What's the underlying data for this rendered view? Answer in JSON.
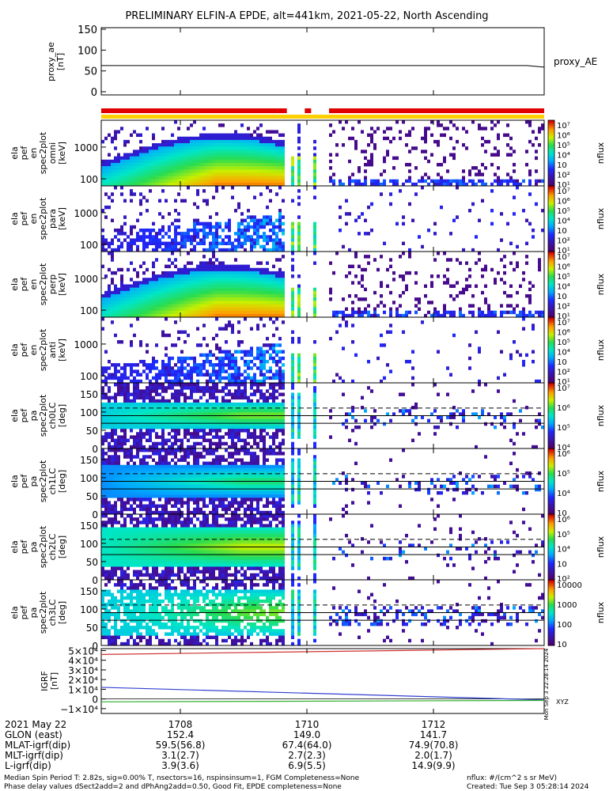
{
  "title": "PRELIMINARY ELFIN-A EPDE, alt=441km, 2021-05-22, North Ascending",
  "chart_data": {
    "type": "heatmap",
    "title": "PRELIMINARY ELFIN-A EPDE, alt=441km, 2021-05-22, North Ascending",
    "time_ticks": [
      "1708",
      "1710",
      "1712"
    ],
    "time_range": [
      "17:06:45",
      "17:13:45"
    ],
    "proxy_ae": {
      "ylabel": [
        "proxy_ae",
        "[nT]"
      ],
      "yticks": [
        "150",
        "100",
        "50",
        "0"
      ],
      "ylim": [
        0,
        150
      ],
      "value": 63,
      "legend": "proxy_AE"
    },
    "status_bars": {
      "red_segments": [
        [
          "17:06:45",
          "17:09:41"
        ],
        [
          "17:09:58",
          "17:10:04"
        ],
        [
          "17:10:21",
          "17:13:45"
        ]
      ],
      "yellow_segment": [
        "17:06:45",
        "17:13:45"
      ]
    },
    "panels": [
      {
        "ylabel": [
          "ela",
          "pef",
          "en",
          "spec2plot",
          "omni",
          "[keV]"
        ],
        "yticks": [
          "1000",
          "100"
        ],
        "yscale": "log",
        "ylim": [
          60,
          7000
        ],
        "cbar_ticks": [
          "10⁷",
          "10⁶",
          "10⁵",
          "10⁴",
          "10⁳",
          "10²",
          "10¹"
        ],
        "cbar_label": "nflux",
        "kind": "energy_strong"
      },
      {
        "ylabel": [
          "ela",
          "pef",
          "en",
          "spec2plot",
          "para",
          "[keV]"
        ],
        "yticks": [
          "1000",
          "100"
        ],
        "yscale": "log",
        "ylim": [
          60,
          7000
        ],
        "cbar_ticks": [
          "10⁷",
          "10⁶",
          "10⁵",
          "10⁴",
          "10⁳",
          "10²",
          "10¹"
        ],
        "cbar_label": "nflux",
        "kind": "energy_weak"
      },
      {
        "ylabel": [
          "ela",
          "pef",
          "en",
          "spec2plot",
          "perp",
          "[keV]"
        ],
        "yticks": [
          "1000",
          "100"
        ],
        "yscale": "log",
        "ylim": [
          60,
          7000
        ],
        "cbar_ticks": [
          "10⁷",
          "10⁶",
          "10⁵",
          "10⁴",
          "10⁳",
          "10²",
          "10¹"
        ],
        "cbar_label": "nflux",
        "kind": "energy_strong"
      },
      {
        "ylabel": [
          "ela",
          "pef",
          "en",
          "spec2plot",
          "anti",
          "[keV]"
        ],
        "yticks": [
          "1000",
          "100"
        ],
        "yscale": "log",
        "ylim": [
          60,
          7000
        ],
        "cbar_ticks": [
          "10⁷",
          "10⁶",
          "10⁵",
          "10⁴",
          "10⁳",
          "10²",
          "10¹"
        ],
        "cbar_label": "nflux",
        "kind": "energy_weak"
      },
      {
        "ylabel": [
          "ela",
          "pef",
          "pa",
          "spec2plot",
          "ch0LC",
          "[deg]"
        ],
        "yticks": [
          "150",
          "100",
          "50",
          "0"
        ],
        "yscale": "linear",
        "ylim": [
          0,
          180
        ],
        "cbar_ticks": [
          "10⁷",
          "10⁶",
          "10⁵",
          "10⁴"
        ],
        "cbar_label": "nflux",
        "kind": "pa",
        "energy_channel": 0
      },
      {
        "ylabel": [
          "ela",
          "pef",
          "pa",
          "spec2plot",
          "ch1LC",
          "[deg]"
        ],
        "yticks": [
          "150",
          "100",
          "50",
          "0"
        ],
        "yscale": "linear",
        "ylim": [
          0,
          180
        ],
        "cbar_ticks": [
          "10⁶",
          "10⁵",
          "10⁴",
          "10⁳"
        ],
        "cbar_label": "nflux",
        "kind": "pa",
        "energy_channel": 1
      },
      {
        "ylabel": [
          "ela",
          "pef",
          "pa",
          "spec2plot",
          "ch2LC",
          "[deg]"
        ],
        "yticks": [
          "150",
          "100",
          "50",
          "0"
        ],
        "yscale": "linear",
        "ylim": [
          0,
          180
        ],
        "cbar_ticks": [
          "10⁶",
          "10⁵",
          "10⁴",
          "10⁳",
          "10²"
        ],
        "cbar_label": "nflux",
        "kind": "pa",
        "energy_channel": 2
      },
      {
        "ylabel": [
          "ela",
          "pef",
          "pa",
          "spec2plot",
          "ch3LC",
          "[deg]"
        ],
        "yticks": [
          "150",
          "100",
          "50",
          "0"
        ],
        "yscale": "linear",
        "ylim": [
          0,
          180
        ],
        "cbar_ticks": [
          "10000",
          "1000",
          "100",
          "10"
        ],
        "cbar_label": "nflux",
        "kind": "pa",
        "energy_channel": 3
      }
    ],
    "igrf": {
      "ylabel": [
        "IGRF",
        "[nT]"
      ],
      "yticks": [
        "5×10⁴",
        "4×10⁴",
        "3×10⁴",
        "2×10⁴",
        "1×10⁴",
        "0",
        "−1×10⁴"
      ],
      "ylim": [
        -15000,
        52000
      ],
      "series": [
        {
          "color": "#d03030",
          "start": 46000,
          "end": 52000
        },
        {
          "color": "#3040d0",
          "start": 12000,
          "end": -1000
        },
        {
          "color": "#30b030",
          "start": -3000,
          "end": -1500
        }
      ],
      "side_label": "Mon Sep  3 22:28:14 2024",
      "xyz_label": "XYZ"
    },
    "ephemeris": [
      {
        "label": "2021 May 22",
        "values": [
          "1708",
          "1710",
          "1712"
        ]
      },
      {
        "label": "GLON (east)",
        "values": [
          "152.4",
          "149.0",
          "141.7"
        ]
      },
      {
        "label": "MLAT-igrf(dip)",
        "values": [
          "59.5(56.8)",
          "67.4(64.0)",
          "74.9(70.8)"
        ]
      },
      {
        "label": "MLT-igrf(dip)",
        "values": [
          "3.1(2.7)",
          "2.7(2.3)",
          "2.0(1.7)"
        ]
      },
      {
        "label": "L-igrf(dip)",
        "values": [
          "3.9(3.6)",
          "6.9(5.5)",
          "14.9(9.9)"
        ]
      }
    ],
    "footer": {
      "line1": "Median Spin Period T: 2.82s, sig=0.00% T, nsectors=16, nspinsinsum=1, FGM Completeness=None",
      "line2": "Phase delay values dSect2add=2 and dPhAng2add=0.50, Good Fit, EPDE completeness=None",
      "units": "nflux: #/(cm^2 s sr MeV)",
      "created": "Created: Tue Sep  3 05:28:14 2024"
    }
  }
}
